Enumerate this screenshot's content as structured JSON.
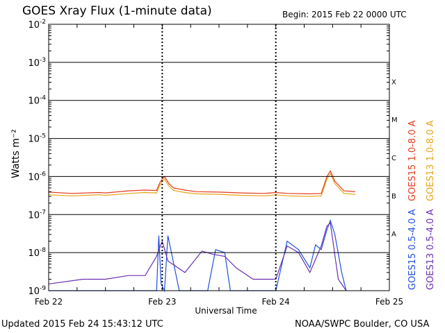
{
  "header": {
    "title": "GOES Xray Flux (1-minute data)",
    "begin": "Begin:  2015 Feb 22 0000 UTC"
  },
  "footer": {
    "updated": "Updated 2015 Feb 24 15:43:12 UTC",
    "credit": "NOAA/SWPC Boulder, CO USA"
  },
  "colors": {
    "goes15_long": "#e23b1e",
    "goes13_long": "#e8a317",
    "goes15_short": "#1f4fe0",
    "goes13_short": "#6a2fb2"
  },
  "chart_data": {
    "type": "line",
    "title": "GOES Xray Flux (1-minute data)",
    "xlabel": "Universal Time",
    "ylabel": "Watts m⁻²",
    "y_scale": "log",
    "ylim": [
      1e-09,
      0.01
    ],
    "y_tick_labels": [
      {
        "mant": "10",
        "exp": "-2",
        "value": 0.01
      },
      {
        "mant": "10",
        "exp": "-3",
        "value": 0.001
      },
      {
        "mant": "10",
        "exp": "-4",
        "value": 0.0001
      },
      {
        "mant": "10",
        "exp": "-5",
        "value": 1e-05
      },
      {
        "mant": "10",
        "exp": "-6",
        "value": 1e-06
      },
      {
        "mant": "10",
        "exp": "-7",
        "value": 1e-07
      },
      {
        "mant": "10",
        "exp": "-8",
        "value": 1e-08
      },
      {
        "mant": "10",
        "exp": "-9",
        "value": 1e-09
      }
    ],
    "x_unit": "days since 2015 Feb 22 0000 UTC",
    "xlim": [
      0,
      3
    ],
    "x_tick_labels": [
      {
        "label": "Feb 22",
        "x": 0
      },
      {
        "label": "Feb 23",
        "x": 1
      },
      {
        "label": "Feb 24",
        "x": 2
      },
      {
        "label": "Feb 25",
        "x": 3
      }
    ],
    "flare_classes": [
      {
        "label": "X",
        "low": 0.0001,
        "high": 0.001
      },
      {
        "label": "M",
        "low": 1e-05,
        "high": 0.0001
      },
      {
        "label": "C",
        "low": 1e-06,
        "high": 1e-05
      },
      {
        "label": "B",
        "low": 1e-07,
        "high": 1e-06
      },
      {
        "label": "A",
        "low": 1e-08,
        "high": 1e-07
      }
    ],
    "grid": "horizontal lines at each decade",
    "legend_position": "right, rotated vertical",
    "series": [
      {
        "name": "GOES15 1.0-8.0 A",
        "color": "#e23b1e",
        "x": [
          0.0,
          0.2,
          0.45,
          0.5,
          0.7,
          0.85,
          0.95,
          0.98,
          1.0,
          1.02,
          1.06,
          1.1,
          1.2,
          1.3,
          1.5,
          1.7,
          1.9,
          2.0,
          2.1,
          2.3,
          2.4,
          2.45,
          2.48,
          2.52,
          2.6,
          2.7
        ],
        "y": [
          3.9e-07,
          3.6e-07,
          3.8e-07,
          3.7e-07,
          4.2e-07,
          4.4e-07,
          4.3e-07,
          7e-07,
          8.5e-07,
          1e-06,
          6.5e-07,
          5e-07,
          4.4e-07,
          4e-07,
          3.9e-07,
          3.7e-07,
          3.6e-07,
          3.8e-07,
          3.6e-07,
          3.5e-07,
          3.6e-07,
          1e-06,
          1.4e-06,
          7.5e-07,
          4.2e-07,
          4e-07
        ]
      },
      {
        "name": "GOES13 1.0-8.0 A",
        "color": "#e8a317",
        "x": [
          0.0,
          0.2,
          0.45,
          0.5,
          0.7,
          0.85,
          0.95,
          0.98,
          1.0,
          1.02,
          1.06,
          1.1,
          1.2,
          1.3,
          1.5,
          1.7,
          1.9,
          2.0,
          2.1,
          2.3,
          2.4,
          2.45,
          2.48,
          2.52,
          2.6,
          2.7
        ],
        "y": [
          3.3e-07,
          3.1e-07,
          3.3e-07,
          3.2e-07,
          3.6e-07,
          3.8e-07,
          3.7e-07,
          6e-07,
          7.3e-07,
          8.6e-07,
          5.6e-07,
          4.3e-07,
          3.8e-07,
          3.5e-07,
          3.4e-07,
          3.2e-07,
          3.1e-07,
          3.3e-07,
          3.1e-07,
          3e-07,
          3.1e-07,
          8.6e-07,
          1.2e-06,
          6.5e-07,
          3.6e-07,
          3.4e-07
        ]
      },
      {
        "name": "GOES15 0.5-4.0 A",
        "color": "#1f4fe0",
        "x": [
          0.0,
          0.8,
          0.95,
          0.97,
          0.99,
          1.02,
          1.05,
          1.15,
          1.4,
          1.47,
          1.55,
          1.6,
          1.9,
          2.0,
          2.1,
          2.2,
          2.3,
          2.35,
          2.4,
          2.45,
          2.48,
          2.52,
          2.58,
          2.62
        ],
        "y": [
          1e-09,
          1e-09,
          1e-09,
          2.8e-08,
          1.5e-09,
          1e-09,
          2.8e-08,
          1e-09,
          1e-09,
          1.2e-08,
          1e-08,
          1e-09,
          1e-09,
          1e-09,
          2e-08,
          1.2e-08,
          4e-09,
          1.6e-08,
          1.2e-08,
          4e-08,
          7e-08,
          3e-08,
          3e-09,
          1e-09
        ]
      },
      {
        "name": "GOES13 0.5-4.0 A",
        "color": "#6a2fb2",
        "x": [
          0.0,
          0.3,
          0.5,
          0.7,
          0.85,
          0.95,
          1.0,
          1.05,
          1.2,
          1.35,
          1.45,
          1.55,
          1.65,
          1.8,
          1.9,
          2.0,
          2.1,
          2.2,
          2.3,
          2.4,
          2.45,
          2.48,
          2.55,
          2.62
        ],
        "y": [
          1.5e-09,
          2e-09,
          2e-09,
          2.5e-09,
          2.5e-09,
          8e-09,
          2e-08,
          6e-09,
          3e-09,
          1.1e-08,
          9e-09,
          8e-09,
          4e-09,
          2e-09,
          2e-09,
          2e-09,
          1.5e-08,
          1e-08,
          3e-09,
          1.5e-08,
          5e-08,
          6e-08,
          2e-09,
          1e-09
        ]
      }
    ]
  }
}
